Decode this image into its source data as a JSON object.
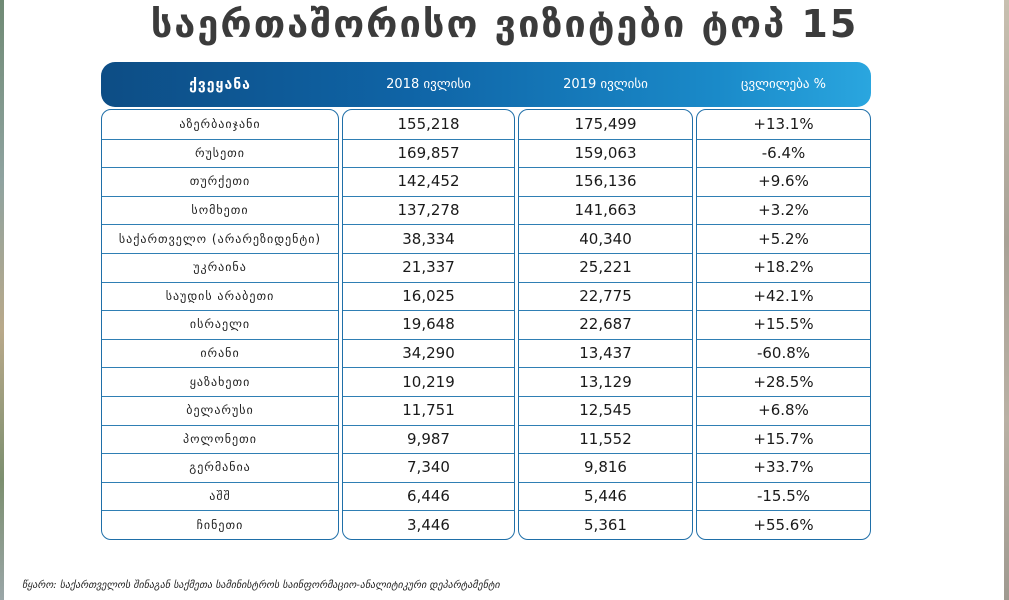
{
  "title": "საერთაშორისო ვიზიტები ტოპ 15",
  "header": {
    "country": "ქვეყანა",
    "year2018": "2018 ივლისი",
    "year2019": "2019 ივლისი",
    "change": "ცვლილება %"
  },
  "rows": [
    {
      "country": "აზერბაიჯანი",
      "v2018": "155,218",
      "v2019": "175,499",
      "change": "+13.1%"
    },
    {
      "country": "რუსეთი",
      "v2018": "169,857",
      "v2019": "159,063",
      "change": "-6.4%"
    },
    {
      "country": "თურქეთი",
      "v2018": "142,452",
      "v2019": "156,136",
      "change": "+9.6%"
    },
    {
      "country": "სომხეთი",
      "v2018": "137,278",
      "v2019": "141,663",
      "change": "+3.2%"
    },
    {
      "country": "საქართველო (არარეზიდენტი)",
      "v2018": "38,334",
      "v2019": "40,340",
      "change": "+5.2%"
    },
    {
      "country": "უკრაინა",
      "v2018": "21,337",
      "v2019": "25,221",
      "change": "+18.2%"
    },
    {
      "country": "საუდის არაბეთი",
      "v2018": "16,025",
      "v2019": "22,775",
      "change": "+42.1%"
    },
    {
      "country": "ისრაელი",
      "v2018": "19,648",
      "v2019": "22,687",
      "change": "+15.5%"
    },
    {
      "country": "ირანი",
      "v2018": "34,290",
      "v2019": "13,437",
      "change": "-60.8%"
    },
    {
      "country": "ყაზახეთი",
      "v2018": "10,219",
      "v2019": "13,129",
      "change": "+28.5%"
    },
    {
      "country": "ბელარუსი",
      "v2018": "11,751",
      "v2019": "12,545",
      "change": "+6.8%"
    },
    {
      "country": "პოლონეთი",
      "v2018": "9,987",
      "v2019": "11,552",
      "change": "+15.7%"
    },
    {
      "country": "გერმანია",
      "v2018": "7,340",
      "v2019": "9,816",
      "change": "+33.7%"
    },
    {
      "country": "აშშ",
      "v2018": "6,446",
      "v2019": "5,446",
      "change": "-15.5%"
    },
    {
      "country": "ჩინეთი",
      "v2018": "3,446",
      "v2019": "5,361",
      "change": "+55.6%"
    }
  ],
  "source": "წყარო: საქართველოს შინაგან საქმეთა სამინისტროს საინფორმაციო-ანალიტიკური დეპარტამენტი",
  "colors": {
    "header_dark": "#0d4d85",
    "header_light": "#2aa6df",
    "border": "#1f6fa8"
  }
}
